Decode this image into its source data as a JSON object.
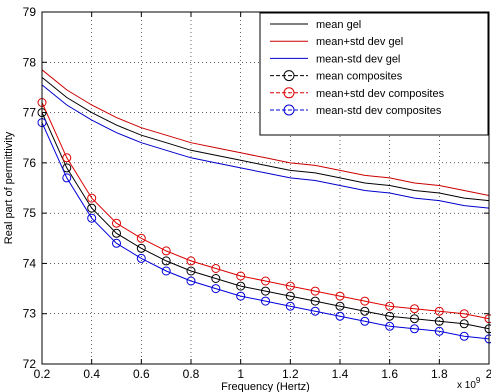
{
  "chart_data": {
    "type": "line",
    "title": "",
    "xlabel": "Frequency (Hertz)",
    "ylabel": "Real part of permittivity",
    "x_multiplier_label": "x 10",
    "x_multiplier_exponent": "9",
    "xlim": [
      0.2,
      2.0
    ],
    "ylim": [
      72,
      79
    ],
    "x_ticks": [
      0.2,
      0.4,
      0.6,
      0.8,
      1.0,
      1.2,
      1.4,
      1.6,
      1.8,
      2.0
    ],
    "x_tick_labels": [
      "0.2",
      "0.4",
      "0.6",
      "0.8",
      "1",
      "1.2",
      "1.4",
      "1.6",
      "1.8",
      "2"
    ],
    "y_ticks": [
      72,
      73,
      74,
      75,
      76,
      77,
      78,
      79
    ],
    "y_tick_labels": [
      "72",
      "73",
      "74",
      "75",
      "76",
      "77",
      "78",
      "79"
    ],
    "grid": true,
    "legend_position": "top-right",
    "x": [
      0.2,
      0.3,
      0.4,
      0.5,
      0.6,
      0.7,
      0.8,
      0.9,
      1.0,
      1.1,
      1.2,
      1.3,
      1.4,
      1.5,
      1.6,
      1.7,
      1.8,
      1.9,
      2.0
    ],
    "series": [
      {
        "name": "mean gel",
        "color": "#000000",
        "marker": "none",
        "values": [
          77.7,
          77.3,
          77.0,
          76.75,
          76.55,
          76.4,
          76.25,
          76.15,
          76.05,
          75.95,
          75.85,
          75.8,
          75.7,
          75.6,
          75.55,
          75.45,
          75.4,
          75.3,
          75.25
        ]
      },
      {
        "name": "mean+std dev gel",
        "color": "#cc0000",
        "marker": "none",
        "values": [
          77.85,
          77.45,
          77.15,
          76.9,
          76.7,
          76.55,
          76.4,
          76.3,
          76.2,
          76.1,
          76.0,
          75.95,
          75.85,
          75.75,
          75.7,
          75.6,
          75.55,
          75.45,
          75.35
        ]
      },
      {
        "name": "mean-std dev gel",
        "color": "#0000cc",
        "marker": "none",
        "values": [
          77.55,
          77.15,
          76.85,
          76.6,
          76.4,
          76.25,
          76.1,
          76.0,
          75.9,
          75.8,
          75.7,
          75.65,
          75.55,
          75.45,
          75.4,
          75.3,
          75.25,
          75.15,
          75.1
        ]
      },
      {
        "name": "mean composites",
        "color": "#000000",
        "marker": "circle",
        "values": [
          77.0,
          75.9,
          75.1,
          74.6,
          74.3,
          74.05,
          73.85,
          73.7,
          73.55,
          73.45,
          73.35,
          73.25,
          73.15,
          73.05,
          72.95,
          72.9,
          72.85,
          72.8,
          72.7
        ]
      },
      {
        "name": "mean+std dev composites",
        "color": "#dd0000",
        "marker": "circle",
        "values": [
          77.2,
          76.1,
          75.3,
          74.8,
          74.5,
          74.25,
          74.05,
          73.9,
          73.75,
          73.65,
          73.55,
          73.45,
          73.35,
          73.25,
          73.15,
          73.1,
          73.05,
          73.0,
          72.9
        ]
      },
      {
        "name": "mean-std dev composites",
        "color": "#0000dd",
        "marker": "circle",
        "values": [
          76.8,
          75.7,
          74.9,
          74.4,
          74.1,
          73.85,
          73.65,
          73.5,
          73.35,
          73.25,
          73.15,
          73.05,
          72.95,
          72.85,
          72.75,
          72.7,
          72.65,
          72.55,
          72.5
        ]
      }
    ]
  }
}
